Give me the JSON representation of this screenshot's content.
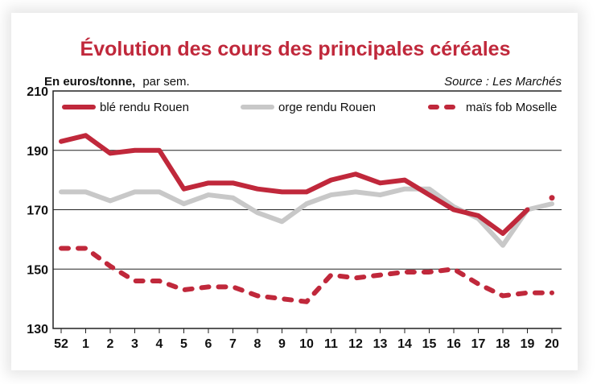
{
  "chart_data": {
    "type": "line",
    "title": "Évolution des cours des principales céréales",
    "ylabel_bold": "En euros/tonne,",
    "ylabel_rest": "par sem.",
    "source": "Source : Les Marchés",
    "categories": [
      "52",
      "1",
      "2",
      "3",
      "4",
      "5",
      "6",
      "7",
      "8",
      "9",
      "10",
      "11",
      "12",
      "13",
      "14",
      "15",
      "16",
      "17",
      "18",
      "19",
      "20"
    ],
    "ylim": [
      130,
      210
    ],
    "yticks": [
      130,
      150,
      170,
      190,
      210
    ],
    "grid": "horizontal",
    "legend_position": "top",
    "series": [
      {
        "name": "blé rendu Rouen",
        "color": "#c0283b",
        "style": "solid",
        "values": [
          193,
          195,
          189,
          190,
          190,
          177,
          179,
          179,
          177,
          176,
          176,
          180,
          182,
          179,
          180,
          175,
          170,
          168,
          162,
          170,
          null
        ]
      },
      {
        "name": "orge rendu Rouen",
        "color": "#c8c8c8",
        "style": "solid",
        "values": [
          176,
          176,
          173,
          176,
          176,
          172,
          175,
          174,
          169,
          166,
          172,
          175,
          176,
          175,
          177,
          177,
          171,
          167,
          158,
          170,
          172
        ]
      },
      {
        "name": "maïs fob Moselle",
        "color": "#c0283b",
        "style": "dashed",
        "values": [
          157,
          157,
          151,
          146,
          146,
          143,
          144,
          144,
          141,
          140,
          139,
          148,
          147,
          148,
          149,
          149,
          150,
          145,
          141,
          142,
          142
        ]
      }
    ],
    "extra_points": [
      {
        "series": "blé rendu Rouen",
        "category": "20",
        "value": 174,
        "color": "#c0283b"
      }
    ]
  }
}
